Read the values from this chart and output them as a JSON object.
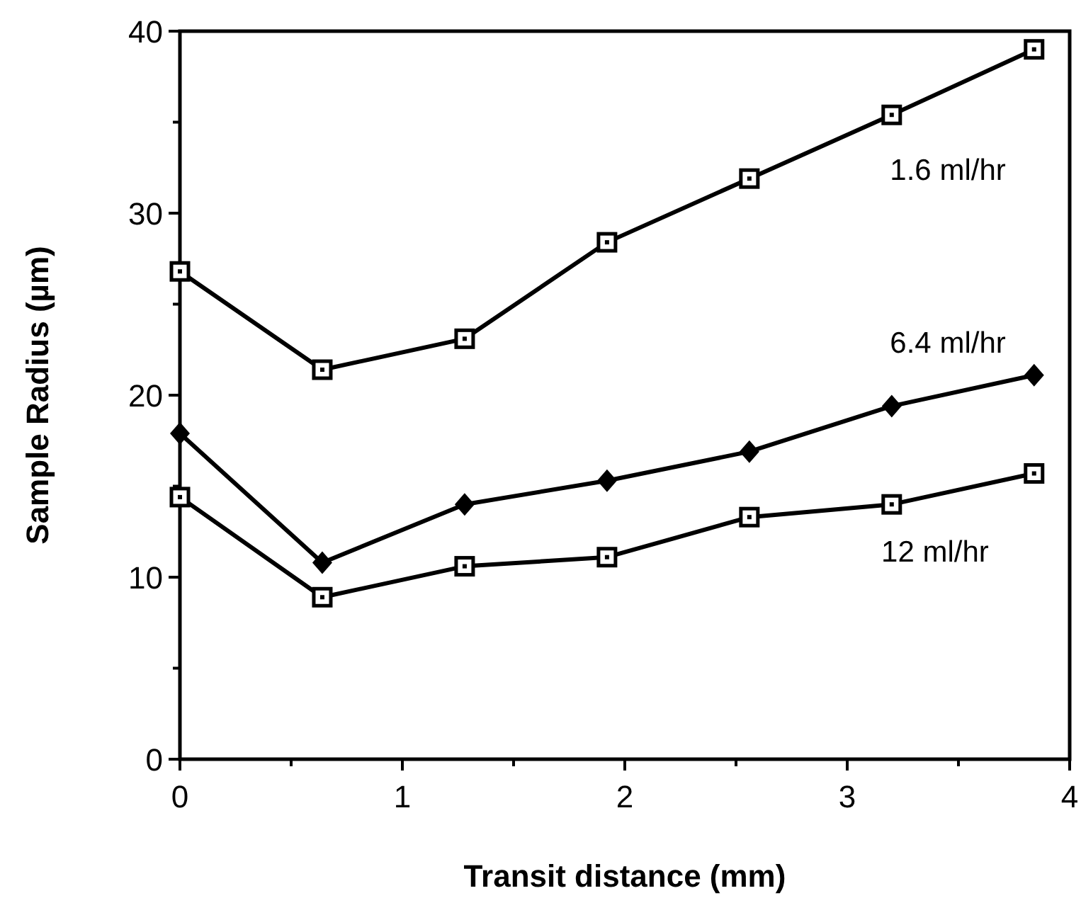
{
  "chart_data": {
    "type": "line",
    "xlabel": "Transit distance (mm)",
    "ylabel": "Sample Radius (µm)",
    "x": [
      0,
      0.64,
      1.28,
      1.92,
      2.56,
      3.2,
      3.84
    ],
    "series": [
      {
        "name": "1.6 ml/hr",
        "color": "#000000",
        "marker": "square",
        "values": [
          26.8,
          21.4,
          23.1,
          28.4,
          31.9,
          35.4,
          39.0
        ]
      },
      {
        "name": "6.4 ml/hr",
        "color": "#000000",
        "marker": "diamond",
        "values": [
          17.9,
          10.8,
          14.0,
          15.3,
          16.9,
          19.4,
          21.1
        ]
      },
      {
        "name": "12 ml/hr",
        "color": "#000000",
        "marker": "square",
        "values": [
          14.4,
          8.9,
          10.6,
          11.1,
          13.3,
          14.0,
          15.7
        ]
      }
    ],
    "xlim": [
      0,
      4
    ],
    "ylim": [
      0,
      40
    ],
    "xticks": [
      0,
      {
        "value": 0.5,
        "label": null
      },
      1,
      {
        "value": 1.5,
        "label": null
      },
      2,
      {
        "value": 2.5,
        "label": null
      },
      3,
      {
        "value": 3.5,
        "label": null
      },
      4
    ],
    "yticks": [
      0,
      {
        "value": 5,
        "label": null
      },
      10,
      {
        "value": 15,
        "label": null
      },
      20,
      {
        "value": 25,
        "label": null
      },
      30,
      {
        "value": 35,
        "label": null
      },
      40
    ],
    "legend": false,
    "grid": false,
    "line_style": "solid"
  }
}
